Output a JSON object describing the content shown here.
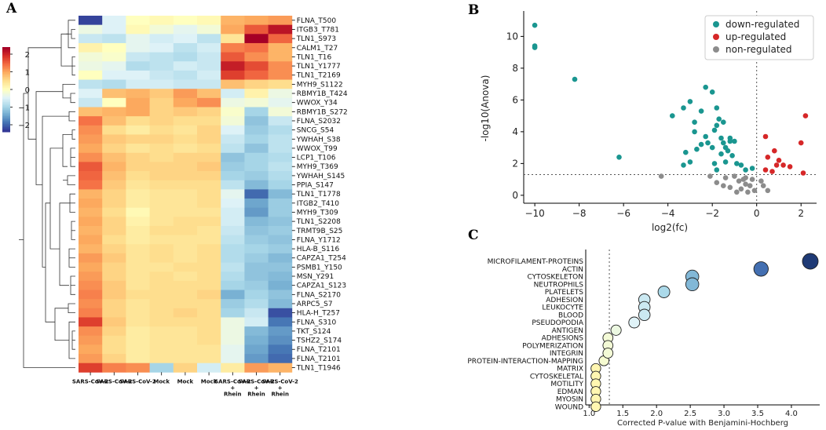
{
  "panels": {
    "a": "A",
    "b": "B",
    "c": "C"
  },
  "colors": {
    "down": "#1a9690",
    "up": "#d62728",
    "non": "#8c8c8c",
    "heat_low": "#313695",
    "heat_mid": "#ffffbf",
    "heat_high": "#a50026",
    "bubble_dark": "#1f3a75",
    "bubble_light": "#ffffcc"
  },
  "chart_data": [
    {
      "type": "heatmap",
      "panel": "A",
      "colorbar": {
        "ticks": [
          2,
          1,
          0,
          -1,
          -2
        ],
        "range": [
          -2.4,
          2.4
        ]
      },
      "columns": [
        "SARS-CoV-2",
        "SARS-CoV-2",
        "SARS-CoV-2",
        "Mock",
        "Mock",
        "Mock",
        "SARS-CoV-2 + Rhein",
        "SARS-CoV-2 + Rhein",
        "SARS-CoV-2 + Rhein"
      ],
      "column_lines": [
        [
          "SARS-CoV-2"
        ],
        [
          "SARS-CoV-2"
        ],
        [
          "SARS-CoV-2"
        ],
        [
          "Mock"
        ],
        [
          "Mock"
        ],
        [
          "Mock"
        ],
        [
          "SARS-CoV-2",
          "+",
          "Rhein"
        ],
        [
          "SARS-CoV-2",
          "+",
          "Rhein"
        ],
        [
          "SARS-CoV-2",
          "+",
          "Rhein"
        ]
      ],
      "rows": [
        "FLNA_T500",
        "ITGB3_T781",
        "TLN1_S973",
        "CALM1_T27",
        "TLN1_T16",
        "TLN1_Y1777",
        "TLN1_T2169",
        "MYH9_S1122",
        "RBMY1B_T424",
        "WWOX_Y34",
        "RBMY1B_S272",
        "FLNA_S2032",
        "SNCG_S54",
        "YWHAH_S38",
        "WWOX_T99",
        "LCP1_T106",
        "MYH9_T369",
        "YWHAH_S145",
        "PPIA_S147",
        "TLN1_T1778",
        "ITGB2_T410",
        "MYH9_T309",
        "TLN1_S2208",
        "TRMT9B_S25",
        "FLNA_Y1712",
        "HLA-B_S116",
        "CAPZA1_T254",
        "PSMB1_Y150",
        "MSN_Y291",
        "CAPZA1_S123",
        "FLNA_S2170",
        "ARPC5_S7",
        "HLA-H_T257",
        "FLNA_S310",
        "TKT_S124",
        "TSHZ2_S174",
        "FLNA_T2101",
        "FLNA_T2101",
        "TLN1_T1946"
      ],
      "values": [
        [
          -2.3,
          -0.5,
          0.0,
          0.1,
          0.0,
          0.1,
          0.9,
          1.0,
          1.1
        ],
        [
          -0.3,
          -0.5,
          0.1,
          -0.2,
          -0.4,
          -0.2,
          1.0,
          1.6,
          2.2
        ],
        [
          -0.7,
          -0.8,
          -0.4,
          -0.6,
          -0.5,
          -0.8,
          0.4,
          2.4,
          1.5
        ],
        [
          0.2,
          0.0,
          -0.4,
          -0.5,
          -0.8,
          -0.6,
          1.3,
          1.4,
          0.9
        ],
        [
          -0.2,
          -0.1,
          -0.7,
          -0.8,
          -0.9,
          -0.7,
          1.6,
          1.2,
          0.9
        ],
        [
          -0.3,
          -0.4,
          -0.9,
          -0.8,
          -0.6,
          -0.7,
          2.1,
          1.7,
          1.2
        ],
        [
          0.0,
          -0.5,
          -0.5,
          -0.7,
          -0.8,
          -0.6,
          1.8,
          1.5,
          1.2
        ],
        [
          -0.8,
          -0.9,
          -0.6,
          -0.6,
          -0.7,
          -0.7,
          0.8,
          0.6,
          0.5
        ],
        [
          -0.5,
          0.8,
          0.9,
          0.7,
          1.1,
          0.8,
          -0.6,
          0.2,
          -0.3
        ],
        [
          -0.7,
          0.0,
          1.0,
          0.6,
          1.0,
          1.2,
          -0.3,
          -0.2,
          -0.4
        ],
        [
          0.8,
          0.9,
          1.0,
          0.6,
          0.7,
          0.6,
          -0.1,
          -1.0,
          -0.2
        ],
        [
          1.4,
          0.8,
          0.5,
          0.6,
          0.5,
          0.5,
          -0.2,
          -1.2,
          -0.7
        ],
        [
          1.2,
          0.5,
          0.3,
          0.5,
          0.4,
          0.6,
          -0.5,
          -1.1,
          -0.9
        ],
        [
          1.1,
          0.7,
          0.6,
          0.6,
          0.5,
          0.6,
          -0.7,
          -1.0,
          -0.8
        ],
        [
          1.0,
          0.6,
          0.4,
          0.5,
          0.4,
          0.5,
          -0.8,
          -1.2,
          -0.8
        ],
        [
          1.2,
          0.8,
          0.6,
          0.5,
          0.6,
          0.6,
          -1.2,
          -1.0,
          -0.9
        ],
        [
          1.6,
          0.9,
          0.6,
          0.6,
          0.6,
          0.7,
          -1.1,
          -1.0,
          -0.8
        ],
        [
          1.5,
          0.8,
          0.5,
          0.6,
          0.6,
          0.6,
          -1.0,
          -1.1,
          -0.9
        ],
        [
          1.4,
          0.7,
          0.4,
          0.5,
          0.5,
          0.5,
          -0.8,
          -1.3,
          -1.0
        ],
        [
          0.9,
          0.6,
          0.3,
          0.4,
          0.4,
          0.5,
          -0.4,
          -2.0,
          -1.3
        ],
        [
          1.0,
          0.6,
          0.3,
          0.4,
          0.4,
          0.5,
          -0.5,
          -1.5,
          -1.1
        ],
        [
          0.9,
          0.5,
          0.1,
          0.4,
          0.4,
          0.4,
          -0.6,
          -1.6,
          -1.1
        ],
        [
          1.0,
          0.6,
          0.2,
          0.4,
          0.5,
          0.5,
          -0.6,
          -1.3,
          -1.2
        ],
        [
          0.9,
          0.6,
          0.3,
          0.5,
          0.5,
          0.4,
          -0.7,
          -1.2,
          -1.1
        ],
        [
          1.0,
          0.5,
          0.3,
          0.4,
          0.4,
          0.4,
          -0.8,
          -1.1,
          -1.2
        ],
        [
          0.9,
          0.6,
          0.4,
          0.5,
          0.4,
          0.5,
          -0.9,
          -1.0,
          -1.1
        ],
        [
          1.1,
          0.7,
          0.4,
          0.5,
          0.4,
          0.5,
          -0.9,
          -1.1,
          -1.3
        ],
        [
          1.0,
          0.6,
          0.4,
          0.4,
          0.5,
          0.5,
          -0.8,
          -1.2,
          -1.2
        ],
        [
          1.1,
          0.6,
          0.4,
          0.5,
          0.4,
          0.5,
          -0.9,
          -1.2,
          -1.3
        ],
        [
          1.2,
          0.7,
          0.4,
          0.5,
          0.5,
          0.5,
          -1.0,
          -1.1,
          -1.4
        ],
        [
          1.3,
          0.7,
          0.5,
          0.5,
          0.5,
          0.6,
          -1.4,
          -1.0,
          -1.2
        ],
        [
          1.2,
          0.6,
          0.4,
          0.5,
          0.5,
          0.5,
          -1.1,
          -0.9,
          -1.3
        ],
        [
          1.3,
          0.6,
          0.4,
          0.5,
          0.6,
          0.5,
          -1.0,
          -0.7,
          -2.2
        ],
        [
          1.8,
          0.7,
          0.4,
          0.5,
          0.5,
          0.5,
          -0.3,
          -0.6,
          -1.9
        ],
        [
          1.2,
          0.6,
          0.3,
          0.4,
          0.4,
          0.5,
          -0.3,
          -1.3,
          -1.6
        ],
        [
          1.1,
          0.5,
          0.3,
          0.4,
          0.4,
          0.5,
          -0.3,
          -1.4,
          -1.7
        ],
        [
          1.0,
          0.5,
          0.3,
          0.4,
          0.4,
          0.4,
          -0.4,
          -1.5,
          -1.9
        ],
        [
          1.1,
          0.6,
          0.3,
          0.4,
          0.4,
          0.4,
          -0.4,
          -1.6,
          -2.0
        ],
        [
          1.8,
          1.3,
          1.2,
          -1.0,
          0.6,
          -0.6,
          0.3,
          1.1,
          0.9
        ]
      ]
    },
    {
      "type": "scatter",
      "panel": "B",
      "xlabel": "log2(fc)",
      "ylabel": "-log10(Anova)",
      "xlim": [
        -10.5,
        2.7
      ],
      "ylim": [
        -0.5,
        11.6
      ],
      "xticks": [
        -10,
        -8,
        -6,
        -4,
        -2,
        0,
        2
      ],
      "yticks": [
        0,
        2,
        4,
        6,
        8,
        10
      ],
      "threshold_y": 1.3,
      "threshold_x": 0,
      "legend": [
        "down-regulated",
        "up-regulated",
        "non-regulated"
      ],
      "series": [
        {
          "name": "down-regulated",
          "points": [
            [
              -10,
              10.7
            ],
            [
              -10,
              9.4
            ],
            [
              -10,
              9.3
            ],
            [
              -8.2,
              7.3
            ],
            [
              -6.2,
              2.4
            ],
            [
              -3.8,
              5.0
            ],
            [
              -3.3,
              5.5
            ],
            [
              -3.0,
              5.9
            ],
            [
              -2.8,
              4.6
            ],
            [
              -2.5,
              5.3
            ],
            [
              -2.3,
              6.8
            ],
            [
              -2.0,
              6.5
            ],
            [
              -1.8,
              5.5
            ],
            [
              -1.5,
              4.6
            ],
            [
              -1.2,
              3.6
            ],
            [
              -1.0,
              3.4
            ],
            [
              -3.2,
              2.7
            ],
            [
              -3.3,
              1.9
            ],
            [
              -3.0,
              2.1
            ],
            [
              -2.8,
              4.0
            ],
            [
              -2.5,
              3.2
            ],
            [
              -2.3,
              3.7
            ],
            [
              -2.2,
              3.3
            ],
            [
              -2.0,
              3.0
            ],
            [
              -1.9,
              4.1
            ],
            [
              -1.8,
              4.4
            ],
            [
              -1.7,
              4.8
            ],
            [
              -1.6,
              3.6
            ],
            [
              -1.5,
              3.3
            ],
            [
              -1.4,
              3.0
            ],
            [
              -1.3,
              2.8
            ],
            [
              -1.2,
              3.4
            ],
            [
              -1.1,
              2.5
            ],
            [
              -0.9,
              2.0
            ],
            [
              -0.7,
              1.9
            ],
            [
              -0.5,
              1.6
            ],
            [
              -0.2,
              1.7
            ],
            [
              -1.9,
              2.0
            ],
            [
              -1.8,
              1.6
            ],
            [
              -1.6,
              2.6
            ],
            [
              -1.4,
              2.1
            ],
            [
              -2.7,
              2.9
            ]
          ]
        },
        {
          "name": "up-regulated",
          "points": [
            [
              2.2,
              5.0
            ],
            [
              2.0,
              3.3
            ],
            [
              2.1,
              1.4
            ],
            [
              0.4,
              3.7
            ],
            [
              0.5,
              2.4
            ],
            [
              0.8,
              2.8
            ],
            [
              0.9,
              1.9
            ],
            [
              1.0,
              2.2
            ],
            [
              1.2,
              1.9
            ],
            [
              1.5,
              1.8
            ],
            [
              0.4,
              1.6
            ],
            [
              0.7,
              1.5
            ]
          ]
        },
        {
          "name": "non-regulated",
          "points": [
            [
              -4.3,
              1.2
            ],
            [
              -2.1,
              1.2
            ],
            [
              -1.8,
              0.8
            ],
            [
              -1.4,
              1.1
            ],
            [
              -1.2,
              0.5
            ],
            [
              -1.0,
              1.2
            ],
            [
              -0.8,
              0.9
            ],
            [
              -0.7,
              0.4
            ],
            [
              -0.6,
              1.0
            ],
            [
              -0.5,
              0.7
            ],
            [
              -0.4,
              0.2
            ],
            [
              -0.3,
              0.6
            ],
            [
              -0.2,
              1.0
            ],
            [
              -0.1,
              0.3
            ],
            [
              0.2,
              0.9
            ],
            [
              0.3,
              0.6
            ],
            [
              0.5,
              0.3
            ],
            [
              -0.9,
              0.2
            ],
            [
              -1.5,
              0.6
            ],
            [
              -0.5,
              1.1
            ]
          ]
        }
      ]
    },
    {
      "type": "scatter",
      "panel": "C",
      "xlabel": "Corrected P-value with Benjamini-Hochberg",
      "xlim": [
        0.95,
        4.42
      ],
      "xticks": [
        1.0,
        1.5,
        2.0,
        2.5,
        3.0,
        3.5,
        4.0
      ],
      "threshold_x": 1.3,
      "terms": [
        {
          "label": "MICROFILAMENT-PROTEINS",
          "x": 4.28,
          "size": 1.0,
          "level": 1.0
        },
        {
          "label": "ACTIN",
          "x": 3.55,
          "size": 0.85,
          "level": 0.82
        },
        {
          "label": "CYTOSKELETON",
          "x": 2.53,
          "size": 0.7,
          "level": 0.55
        },
        {
          "label": "NEUTROPHILS",
          "x": 2.53,
          "size": 0.7,
          "level": 0.55
        },
        {
          "label": "PLATELETS",
          "x": 2.11,
          "size": 0.55,
          "level": 0.4
        },
        {
          "label": "ADHESION",
          "x": 1.82,
          "size": 0.5,
          "level": 0.28
        },
        {
          "label": "LEUKOCYTE",
          "x": 1.82,
          "size": 0.5,
          "level": 0.28
        },
        {
          "label": "BLOOD",
          "x": 1.82,
          "size": 0.5,
          "level": 0.28
        },
        {
          "label": "PSEUDOPODIA",
          "x": 1.67,
          "size": 0.45,
          "level": 0.2
        },
        {
          "label": "ANTIGEN",
          "x": 1.4,
          "size": 0.38,
          "level": 0.12
        },
        {
          "label": "ADHESIONS",
          "x": 1.28,
          "size": 0.35,
          "level": 0.08
        },
        {
          "label": "POLYMERIZATION",
          "x": 1.28,
          "size": 0.35,
          "level": 0.08
        },
        {
          "label": "INTEGRIN",
          "x": 1.28,
          "size": 0.35,
          "level": 0.08
        },
        {
          "label": "PROTEIN-INTERACTION-MAPPING",
          "x": 1.22,
          "size": 0.33,
          "level": 0.06
        },
        {
          "label": "MATRIX",
          "x": 1.1,
          "size": 0.3,
          "level": 0.02
        },
        {
          "label": "CYTOSKELETAL",
          "x": 1.1,
          "size": 0.3,
          "level": 0.02
        },
        {
          "label": "MOTILITY",
          "x": 1.1,
          "size": 0.3,
          "level": 0.02
        },
        {
          "label": "EDMAN",
          "x": 1.1,
          "size": 0.3,
          "level": 0.02
        },
        {
          "label": "MYOSIN",
          "x": 1.1,
          "size": 0.3,
          "level": 0.02
        },
        {
          "label": "WOUND",
          "x": 1.1,
          "size": 0.3,
          "level": 0.02
        }
      ]
    }
  ]
}
